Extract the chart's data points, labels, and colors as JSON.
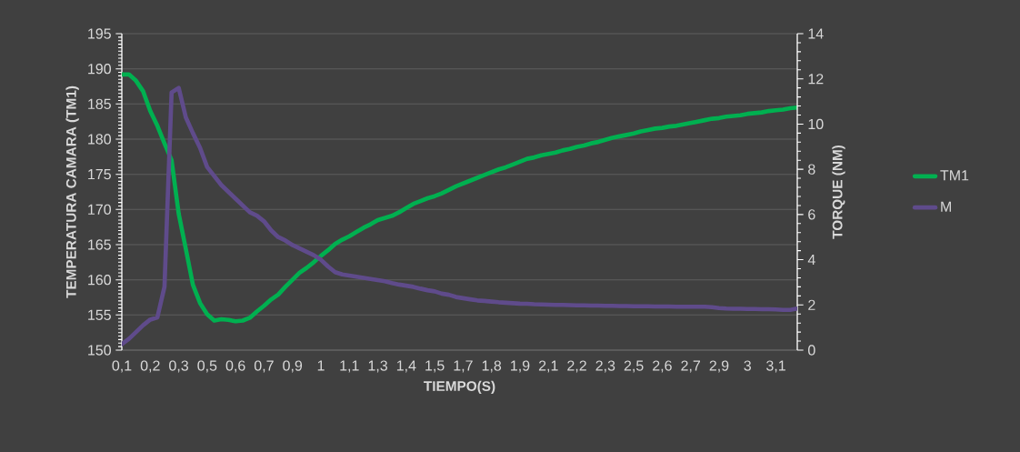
{
  "chart_data": {
    "type": "line",
    "xlabel": "TIEMPO(S)",
    "ylabel": "**TEMPERATURA CAMARA** (TM1)",
    "y2label": "TORQUE (NM)",
    "categories": [
      "0,1",
      null,
      null,
      null,
      "0,2",
      null,
      null,
      null,
      "0,3",
      null,
      null,
      null,
      "0,5",
      null,
      null,
      null,
      "0,6",
      null,
      null,
      null,
      "0,7",
      null,
      null,
      null,
      "0,9",
      null,
      null,
      null,
      "1",
      null,
      null,
      null,
      "1,1",
      null,
      null,
      null,
      "1,3",
      null,
      null,
      null,
      "1,4",
      null,
      null,
      null,
      "1,5",
      null,
      null,
      null,
      "1,7",
      null,
      null,
      null,
      "1,8",
      null,
      null,
      null,
      "1,9",
      null,
      null,
      null,
      "2,1",
      null,
      null,
      null,
      "2,2",
      null,
      null,
      null,
      "2,3",
      null,
      null,
      null,
      "2,5",
      null,
      null,
      null,
      "2,6",
      null,
      null,
      null,
      "2,7",
      null,
      null,
      null,
      "2,9",
      null,
      null,
      null,
      "3",
      null,
      null,
      null,
      "3,1",
      null,
      null,
      null
    ],
    "series": [
      {
        "name": "TM1",
        "color": "#00b050",
        "values": [
          189.2,
          189.2,
          188.3,
          186.8,
          184.0,
          181.9,
          179.4,
          177.0,
          169.4,
          164.4,
          159.3,
          156.7,
          155.1,
          154.2,
          154.4,
          154.3,
          154.1,
          154.2,
          154.6,
          155.5,
          156.3,
          157.2,
          157.9,
          159.0,
          160.0,
          161.0,
          161.7,
          162.5,
          163.4,
          164.2,
          165.1,
          165.7,
          166.2,
          166.8,
          167.4,
          167.9,
          168.5,
          168.8,
          169.1,
          169.6,
          170.2,
          170.8,
          171.2,
          171.6,
          171.9,
          172.3,
          172.8,
          173.3,
          173.7,
          174.1,
          174.5,
          174.9,
          175.3,
          175.7,
          176.0,
          176.4,
          176.8,
          177.2,
          177.4,
          177.7,
          177.9,
          178.1,
          178.4,
          178.6,
          178.9,
          179.1,
          179.4,
          179.6,
          179.9,
          180.2,
          180.4,
          180.6,
          180.8,
          181.1,
          181.3,
          181.5,
          181.6,
          181.8,
          181.9,
          182.1,
          182.3,
          182.5,
          182.7,
          182.9,
          183.0,
          183.2,
          183.3,
          183.4,
          183.6,
          183.7,
          183.8,
          184.0,
          184.1,
          184.2,
          184.4,
          184.5
        ]
      },
      {
        "name": "M",
        "color": "#5f4b8b",
        "axis": "y2",
        "values": [
          0.27,
          0.5,
          0.8,
          1.1,
          1.35,
          1.45,
          2.8,
          11.4,
          11.6,
          10.3,
          9.6,
          8.95,
          8.1,
          7.7,
          7.3,
          7.0,
          6.7,
          6.4,
          6.1,
          5.95,
          5.7,
          5.3,
          5.0,
          4.85,
          4.65,
          4.5,
          4.35,
          4.2,
          4.0,
          3.7,
          3.45,
          3.35,
          3.3,
          3.25,
          3.2,
          3.15,
          3.1,
          3.05,
          2.97,
          2.9,
          2.85,
          2.8,
          2.72,
          2.65,
          2.6,
          2.5,
          2.45,
          2.35,
          2.3,
          2.25,
          2.2,
          2.18,
          2.15,
          2.12,
          2.1,
          2.08,
          2.06,
          2.05,
          2.03,
          2.02,
          2.01,
          2.0,
          2.0,
          1.99,
          1.98,
          1.98,
          1.97,
          1.97,
          1.96,
          1.96,
          1.95,
          1.95,
          1.94,
          1.94,
          1.94,
          1.93,
          1.93,
          1.93,
          1.92,
          1.92,
          1.92,
          1.92,
          1.92,
          1.9,
          1.86,
          1.84,
          1.83,
          1.83,
          1.82,
          1.82,
          1.81,
          1.81,
          1.8,
          1.78,
          1.78,
          1.84
        ]
      }
    ],
    "ylim": [
      150,
      195
    ],
    "yticks": [
      150,
      155,
      160,
      165,
      170,
      175,
      180,
      185,
      190,
      195
    ],
    "y2lim": [
      0,
      14
    ],
    "y2ticks": [
      0,
      2,
      4,
      6,
      8,
      10,
      12,
      14
    ],
    "grid": "y",
    "legend": "right"
  }
}
